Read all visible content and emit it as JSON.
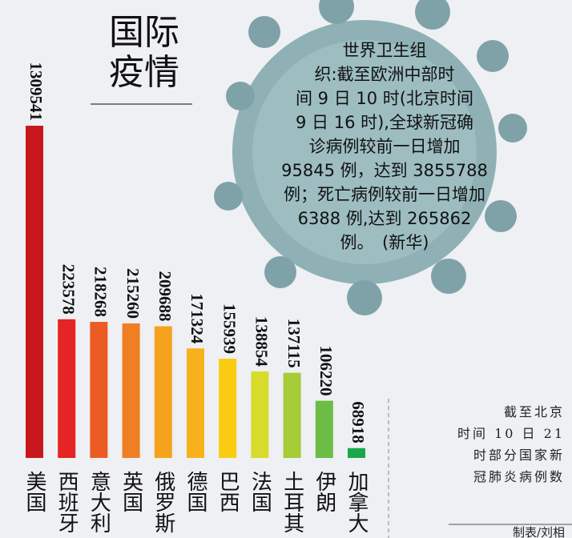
{
  "chart_data": {
    "type": "bar",
    "title": [
      "国际",
      "疫情"
    ],
    "categories": [
      "美国",
      "西班牙",
      "意大利",
      "英国",
      "俄罗斯",
      "德国",
      "巴西",
      "法国",
      "土耳其",
      "伊朗",
      "加拿大"
    ],
    "values": [
      1309541,
      223578,
      218268,
      215260,
      209688,
      171324,
      155939,
      138854,
      137115,
      106220,
      68918
    ],
    "colors": [
      "#c8171d",
      "#e52423",
      "#ec5b24",
      "#f07e22",
      "#f5a21c",
      "#f7b21b",
      "#f9cc12",
      "#d7dc2a",
      "#a6cc38",
      "#6cbd45",
      "#18a84c"
    ],
    "log_scale": true,
    "ylim": [
      63000,
      1310000
    ],
    "news": [
      "世界卫生组",
      "织:截至欧洲中部时",
      "间 9 日 10 时(北京时间",
      "9 日 16 时),全球新冠确",
      "诊病例较前一日增加",
      "95845 例，达到 3855788",
      "例；死亡病例较前一日增加",
      "6388 例,达到 265862",
      "例。　(新华)"
    ],
    "note": [
      "截至北京",
      "时间 10 日 21",
      "时部分国家新",
      "冠肺炎病例数"
    ],
    "credit": "制表/刘相"
  }
}
